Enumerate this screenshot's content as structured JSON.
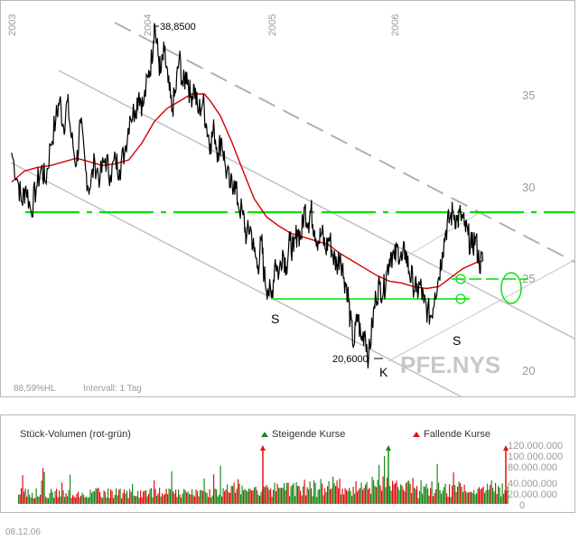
{
  "chart_data": {
    "type": "line",
    "symbol": "PFE.NYS",
    "interval_label": "Intervall: 1 Tag",
    "hl_label": "88,59%HL",
    "date_stamp": "08.12.06",
    "years": [
      "2003",
      "2004",
      "2005",
      "2006"
    ],
    "price_axis": {
      "ticks": [
        20,
        25,
        30,
        35
      ],
      "ylim": [
        18.5,
        39.5
      ]
    },
    "high": {
      "value": 38.85,
      "text": "38,8500"
    },
    "low": {
      "value": 20.6,
      "text": "20,6000"
    },
    "pattern_labels": [
      "S",
      "S",
      "K"
    ],
    "neckline_value": 28.8,
    "support_level": 23.8,
    "price_series": [
      [
        2002.95,
        31.8
      ],
      [
        2003.0,
        30.2
      ],
      [
        2003.03,
        29.1
      ],
      [
        2003.06,
        30.0
      ],
      [
        2003.1,
        28.6
      ],
      [
        2003.14,
        29.9
      ],
      [
        2003.18,
        31.0
      ],
      [
        2003.21,
        30.2
      ],
      [
        2003.25,
        32.2
      ],
      [
        2003.29,
        33.6
      ],
      [
        2003.32,
        34.7
      ],
      [
        2003.35,
        33.2
      ],
      [
        2003.38,
        34.6
      ],
      [
        2003.41,
        32.6
      ],
      [
        2003.45,
        31.2
      ],
      [
        2003.48,
        33.4
      ],
      [
        2003.52,
        30.8
      ],
      [
        2003.55,
        29.8
      ],
      [
        2003.59,
        31.3
      ],
      [
        2003.63,
        30.4
      ],
      [
        2003.67,
        31.5
      ],
      [
        2003.71,
        30.6
      ],
      [
        2003.75,
        31.4
      ],
      [
        2003.78,
        30.9
      ],
      [
        2003.82,
        31.9
      ],
      [
        2003.86,
        33.8
      ],
      [
        2003.9,
        34.1
      ],
      [
        2003.93,
        35.1
      ],
      [
        2003.96,
        34.3
      ],
      [
        2004.0,
        35.9
      ],
      [
        2004.03,
        37.0
      ],
      [
        2004.05,
        38.85
      ],
      [
        2004.08,
        37.1
      ],
      [
        2004.1,
        36.1
      ],
      [
        2004.13,
        37.3
      ],
      [
        2004.16,
        35.6
      ],
      [
        2004.19,
        34.1
      ],
      [
        2004.22,
        35.1
      ],
      [
        2004.25,
        37.0
      ],
      [
        2004.28,
        35.4
      ],
      [
        2004.31,
        36.2
      ],
      [
        2004.34,
        34.8
      ],
      [
        2004.37,
        35.4
      ],
      [
        2004.4,
        34.0
      ],
      [
        2004.44,
        34.6
      ],
      [
        2004.47,
        33.2
      ],
      [
        2004.5,
        32.3
      ],
      [
        2004.53,
        33.1
      ],
      [
        2004.56,
        31.8
      ],
      [
        2004.59,
        32.6
      ],
      [
        2004.62,
        31.0
      ],
      [
        2004.66,
        29.9
      ],
      [
        2004.69,
        30.3
      ],
      [
        2004.72,
        29.1
      ],
      [
        2004.76,
        28.4
      ],
      [
        2004.79,
        27.2
      ],
      [
        2004.82,
        27.8
      ],
      [
        2004.85,
        26.4
      ],
      [
        2004.88,
        25.6
      ],
      [
        2004.91,
        27.0
      ],
      [
        2004.93,
        25.1
      ],
      [
        2004.96,
        24.4
      ],
      [
        2004.99,
        23.9
      ],
      [
        2005.02,
        26.0
      ],
      [
        2005.05,
        25.2
      ],
      [
        2005.08,
        26.5
      ],
      [
        2005.11,
        25.6
      ],
      [
        2005.14,
        27.0
      ],
      [
        2005.17,
        26.4
      ],
      [
        2005.2,
        27.6
      ],
      [
        2005.23,
        27.2
      ],
      [
        2005.26,
        28.8
      ],
      [
        2005.29,
        28.0
      ],
      [
        2005.31,
        28.7
      ],
      [
        2005.34,
        27.6
      ],
      [
        2005.37,
        27.0
      ],
      [
        2005.4,
        27.4
      ],
      [
        2005.43,
        26.5
      ],
      [
        2005.46,
        27.2
      ],
      [
        2005.49,
        26.2
      ],
      [
        2005.52,
        25.7
      ],
      [
        2005.55,
        26.3
      ],
      [
        2005.58,
        25.0
      ],
      [
        2005.61,
        24.3
      ],
      [
        2005.63,
        22.7
      ],
      [
        2005.66,
        21.3
      ],
      [
        2005.69,
        23.0
      ],
      [
        2005.72,
        21.6
      ],
      [
        2005.75,
        22.1
      ],
      [
        2005.78,
        20.6
      ],
      [
        2005.81,
        22.4
      ],
      [
        2005.84,
        24.0
      ],
      [
        2005.87,
        24.6
      ],
      [
        2005.9,
        24.2
      ],
      [
        2005.93,
        25.4
      ],
      [
        2005.96,
        26.4
      ],
      [
        2005.99,
        26.0
      ],
      [
        2006.02,
        26.6
      ],
      [
        2006.05,
        25.9
      ],
      [
        2006.08,
        26.5
      ],
      [
        2006.11,
        25.3
      ],
      [
        2006.14,
        24.8
      ],
      [
        2006.17,
        24.2
      ],
      [
        2006.2,
        24.6
      ],
      [
        2006.23,
        23.6
      ],
      [
        2006.26,
        23.2
      ],
      [
        2006.29,
        22.9
      ],
      [
        2006.32,
        24.2
      ],
      [
        2006.35,
        25.0
      ],
      [
        2006.38,
        26.4
      ],
      [
        2006.41,
        27.6
      ],
      [
        2006.44,
        28.2
      ],
      [
        2006.47,
        28.6
      ],
      [
        2006.5,
        28.1
      ],
      [
        2006.53,
        28.4
      ],
      [
        2006.56,
        27.8
      ],
      [
        2006.59,
        27.3
      ],
      [
        2006.62,
        26.6
      ],
      [
        2006.65,
        27.2
      ],
      [
        2006.68,
        25.8
      ],
      [
        2006.71,
        25.9
      ]
    ],
    "moving_average": [
      [
        2002.95,
        30.2
      ],
      [
        2003.05,
        30.8
      ],
      [
        2003.15,
        31.0
      ],
      [
        2003.25,
        31.1
      ],
      [
        2003.35,
        31.3
      ],
      [
        2003.45,
        31.5
      ],
      [
        2003.55,
        31.3
      ],
      [
        2003.65,
        31.1
      ],
      [
        2003.75,
        31.2
      ],
      [
        2003.85,
        31.4
      ],
      [
        2003.95,
        32.3
      ],
      [
        2004.05,
        33.5
      ],
      [
        2004.15,
        34.2
      ],
      [
        2004.25,
        34.6
      ],
      [
        2004.35,
        35.0
      ],
      [
        2004.45,
        35.0
      ],
      [
        2004.5,
        34.6
      ],
      [
        2004.58,
        33.8
      ],
      [
        2004.67,
        32.4
      ],
      [
        2004.75,
        31.0
      ],
      [
        2004.85,
        29.3
      ],
      [
        2004.95,
        28.3
      ],
      [
        2005.05,
        27.8
      ],
      [
        2005.15,
        27.4
      ],
      [
        2005.25,
        27.2
      ],
      [
        2005.35,
        27.0
      ],
      [
        2005.45,
        26.8
      ],
      [
        2005.55,
        26.3
      ],
      [
        2005.65,
        25.9
      ],
      [
        2005.75,
        25.5
      ],
      [
        2005.85,
        25.1
      ],
      [
        2005.95,
        24.8
      ],
      [
        2006.05,
        24.7
      ],
      [
        2006.15,
        24.5
      ],
      [
        2006.25,
        24.4
      ],
      [
        2006.35,
        24.5
      ],
      [
        2006.45,
        25.0
      ],
      [
        2006.55,
        25.5
      ],
      [
        2006.65,
        25.8
      ],
      [
        2006.71,
        25.9
      ]
    ],
    "volume_panel": {
      "title": "Stück-Volumen (rot-grün)",
      "legend_up": "Steigende Kurse",
      "legend_down": "Fallende Kurse",
      "ticks": [
        "120.000.000",
        "100.000.000",
        "80.000.000",
        "40.000.000",
        "20.000.000",
        "0"
      ],
      "ymax": 130000000
    },
    "colors": {
      "up": "#1a8a1a",
      "down": "#e01010",
      "trend": "#00dd00",
      "ma": "#d40000",
      "price": "#000000"
    },
    "grid": false
  }
}
